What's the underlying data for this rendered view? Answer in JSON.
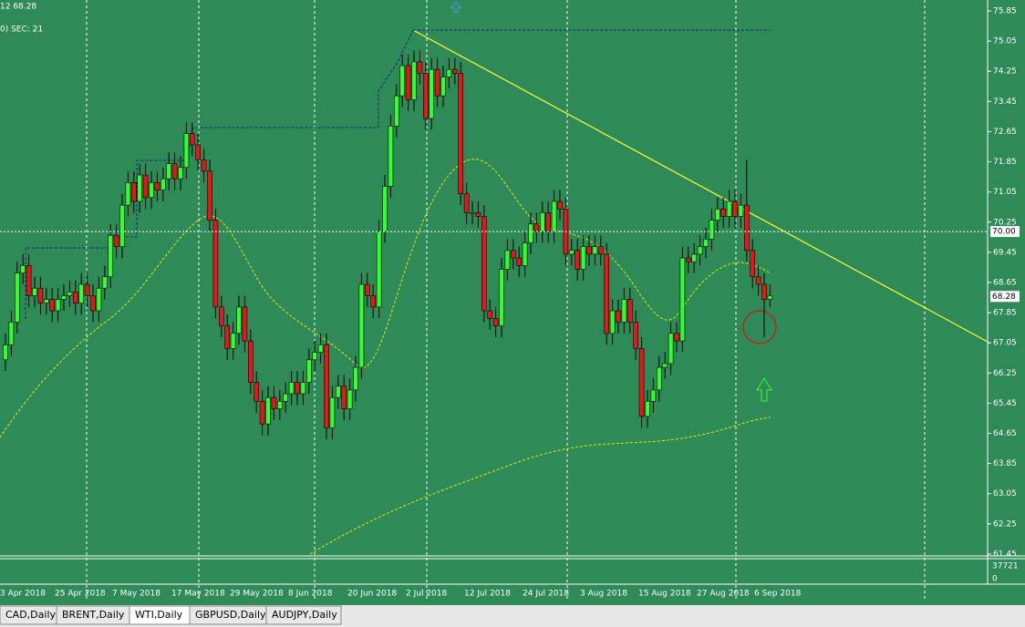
{
  "header": {
    "line1": "12 68.28",
    "line2": "0)  SEC: 21"
  },
  "tabs": [
    "CAD,Daily",
    "BRENT,Daily",
    "WTI,Daily",
    "GBPUSD,Daily",
    "AUDJPY,Daily"
  ],
  "chart_data": {
    "type": "candlestick",
    "x_labels": [
      "3 Apr 2018",
      "25 Apr 2018",
      "7 May 2018",
      "17 May 2018",
      "29 May 2018",
      "8 Jun 2018",
      "20 Jun 2018",
      "2 Jul 2018",
      "12 Jul 2018",
      "24 Jul 2018",
      "3 Aug 2018",
      "15 Aug 2018",
      "27 Aug 2018",
      "6 Sep 2018"
    ],
    "open": [
      66.6,
      67.0,
      67.6,
      68.9,
      69.1,
      68.3,
      68.5,
      68.1,
      68.2,
      67.9,
      68.2,
      68.3,
      68.4,
      68.1,
      68.6,
      68.3,
      67.9,
      68.5,
      68.8,
      69.9,
      69.6,
      70.7,
      71.3,
      70.8,
      71.5,
      70.9,
      71.3,
      71.1,
      71.4,
      71.8,
      71.4,
      71.7,
      72.6,
      72.3,
      71.9,
      71.6,
      70.3,
      68.0,
      67.5,
      66.9,
      67.3,
      68.0,
      67.1,
      66.0,
      65.5,
      64.9,
      65.6,
      65.3,
      65.5,
      65.7,
      66.0,
      65.7,
      66.0,
      66.6,
      66.8,
      67.0,
      64.8,
      65.6,
      65.9,
      65.3,
      65.8,
      66.4,
      68.6,
      68.3,
      68.0,
      70.0,
      71.2,
      72.8,
      73.6,
      74.4,
      73.5,
      74.5,
      74.2,
      73.0,
      74.3,
      73.6,
      74.1,
      74.3,
      74.2,
      71.0,
      70.5,
      70.5,
      70.4,
      67.9,
      67.7,
      67.5,
      69.0,
      69.5,
      69.3,
      69.1,
      69.7,
      70.2,
      70.0,
      70.5,
      70.0,
      70.8,
      70.6,
      69.4,
      69.5,
      69.0,
      69.6,
      69.4,
      69.6,
      69.4,
      67.3,
      67.9,
      67.6,
      68.2,
      67.6,
      66.9,
      65.1,
      65.5,
      65.8,
      66.4,
      66.5,
      67.3,
      67.1,
      69.3,
      69.2,
      69.4,
      69.6,
      69.8,
      70.3,
      70.6,
      70.4,
      70.8,
      70.4,
      70.7,
      69.5,
      68.8,
      68.6,
      68.2
    ],
    "high": [
      67.3,
      67.9,
      69.2,
      69.4,
      69.4,
      68.8,
      68.8,
      68.5,
      68.5,
      68.5,
      68.6,
      68.7,
      68.7,
      68.9,
      68.9,
      68.6,
      68.8,
      69.1,
      70.2,
      70.2,
      71.0,
      71.6,
      71.6,
      71.8,
      71.8,
      71.6,
      71.6,
      71.7,
      72.1,
      72.1,
      72.0,
      72.9,
      72.9,
      72.6,
      72.2,
      71.9,
      70.6,
      68.3,
      67.8,
      67.6,
      68.3,
      68.3,
      67.4,
      66.3,
      65.8,
      65.9,
      65.9,
      65.8,
      66.0,
      66.3,
      66.3,
      66.3,
      66.9,
      67.1,
      67.3,
      67.3,
      65.9,
      66.2,
      66.2,
      66.1,
      66.7,
      68.9,
      68.9,
      68.6,
      70.3,
      71.5,
      73.1,
      73.9,
      74.7,
      74.7,
      74.8,
      74.8,
      74.5,
      74.6,
      74.6,
      74.4,
      74.6,
      74.6,
      74.5,
      71.3,
      70.8,
      70.8,
      70.7,
      68.2,
      68.0,
      69.3,
      69.8,
      69.8,
      69.6,
      70.0,
      70.5,
      70.5,
      70.8,
      70.8,
      71.1,
      71.1,
      70.9,
      69.8,
      69.8,
      69.9,
      69.9,
      69.9,
      69.9,
      69.7,
      68.2,
      68.2,
      68.5,
      68.5,
      67.9,
      67.2,
      65.8,
      66.1,
      66.7,
      66.8,
      67.6,
      67.6,
      69.6,
      69.6,
      69.7,
      69.9,
      70.1,
      70.6,
      70.9,
      70.9,
      71.1,
      71.1,
      71.0,
      71.9,
      69.8,
      69.1,
      68.9,
      68.6
    ],
    "low": [
      66.3,
      66.7,
      67.3,
      68.6,
      68.0,
      68.0,
      67.8,
      67.8,
      67.6,
      67.6,
      67.9,
      68.0,
      67.8,
      67.8,
      68.0,
      67.6,
      67.6,
      68.2,
      68.5,
      69.3,
      69.3,
      70.4,
      70.5,
      70.5,
      70.6,
      70.6,
      70.8,
      70.8,
      71.1,
      71.1,
      71.1,
      71.4,
      72.0,
      71.6,
      71.3,
      70.0,
      67.7,
      67.2,
      66.6,
      66.6,
      67.0,
      66.8,
      65.7,
      65.2,
      64.6,
      64.6,
      65.0,
      65.0,
      65.2,
      65.4,
      65.4,
      65.4,
      65.7,
      66.3,
      66.5,
      64.5,
      64.5,
      65.3,
      65.0,
      65.0,
      65.5,
      66.1,
      68.0,
      67.7,
      67.7,
      69.7,
      70.9,
      72.5,
      73.3,
      73.2,
      73.2,
      73.9,
      72.7,
      72.7,
      73.3,
      73.3,
      73.8,
      73.9,
      70.7,
      70.2,
      70.2,
      70.1,
      67.6,
      67.4,
      67.2,
      67.2,
      68.7,
      69.0,
      68.8,
      68.8,
      69.4,
      69.7,
      69.7,
      69.7,
      69.7,
      70.3,
      69.1,
      69.1,
      68.7,
      68.7,
      69.1,
      69.1,
      69.1,
      67.0,
      67.0,
      67.3,
      67.3,
      67.3,
      66.6,
      64.8,
      64.8,
      65.2,
      65.5,
      66.1,
      66.2,
      66.8,
      66.8,
      68.9,
      68.9,
      69.1,
      69.3,
      69.5,
      70.0,
      70.1,
      70.1,
      70.1,
      70.1,
      69.2,
      68.5,
      68.3,
      67.2,
      68.0
    ],
    "close": [
      67.0,
      67.6,
      68.9,
      69.1,
      68.3,
      68.5,
      68.1,
      68.2,
      67.9,
      68.2,
      68.3,
      68.4,
      68.1,
      68.6,
      68.3,
      67.9,
      68.5,
      68.8,
      69.9,
      69.6,
      70.7,
      71.3,
      70.8,
      71.5,
      70.9,
      71.3,
      71.1,
      71.4,
      71.8,
      71.4,
      71.7,
      72.6,
      72.3,
      71.9,
      71.6,
      70.3,
      68.0,
      67.5,
      66.9,
      67.3,
      68.0,
      67.1,
      66.0,
      65.5,
      64.9,
      65.6,
      65.3,
      65.5,
      65.7,
      66.0,
      65.7,
      66.0,
      66.6,
      66.8,
      67.0,
      64.8,
      65.6,
      65.9,
      65.3,
      65.8,
      66.4,
      68.6,
      68.3,
      68.0,
      70.0,
      71.2,
      72.8,
      73.6,
      74.4,
      73.5,
      74.5,
      74.2,
      73.0,
      74.3,
      73.6,
      74.1,
      74.3,
      74.2,
      71.0,
      70.5,
      70.5,
      70.4,
      67.9,
      67.7,
      67.5,
      69.0,
      69.5,
      69.3,
      69.1,
      69.7,
      70.2,
      70.0,
      70.5,
      70.0,
      70.8,
      70.6,
      69.4,
      69.5,
      69.0,
      69.6,
      69.4,
      69.6,
      69.4,
      67.3,
      67.9,
      67.6,
      68.2,
      67.6,
      66.9,
      65.1,
      65.5,
      65.8,
      66.4,
      66.5,
      67.3,
      67.1,
      69.3,
      69.2,
      69.4,
      69.6,
      69.8,
      70.3,
      70.6,
      70.4,
      70.8,
      70.4,
      70.7,
      69.5,
      68.8,
      68.6,
      68.2,
      68.3
    ],
    "up_color": "#33ff33",
    "down_color": "#e8151b",
    "ylim": [
      61.4,
      76.14
    ],
    "yticks": [
      75.85,
      75.05,
      74.25,
      73.45,
      72.65,
      71.85,
      71.05,
      70.25,
      69.45,
      68.65,
      67.85,
      67.05,
      66.25,
      65.45,
      64.65,
      63.85,
      63.05,
      62.25,
      61.45
    ],
    "price_marks": [
      {
        "value": 70.0,
        "label": "70.00"
      },
      {
        "value": 68.28,
        "label": "68.28"
      }
    ],
    "volume_ticks": [
      37721,
      0
    ]
  }
}
